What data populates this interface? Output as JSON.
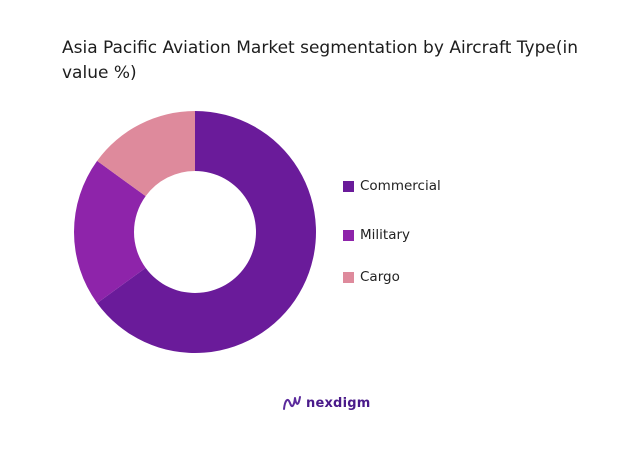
{
  "chart_data": {
    "type": "pie",
    "title": "Asia Pacific Aviation Market segmentation by Aircraft Type(in value %)",
    "categories": [
      "Commercial",
      "Military",
      "Cargo"
    ],
    "values": [
      65,
      20,
      15
    ],
    "colors": [
      "#6a1b9a",
      "#8e24aa",
      "#de8a9c"
    ],
    "legend_position": "right"
  },
  "brand": {
    "name": "nexdigm"
  }
}
